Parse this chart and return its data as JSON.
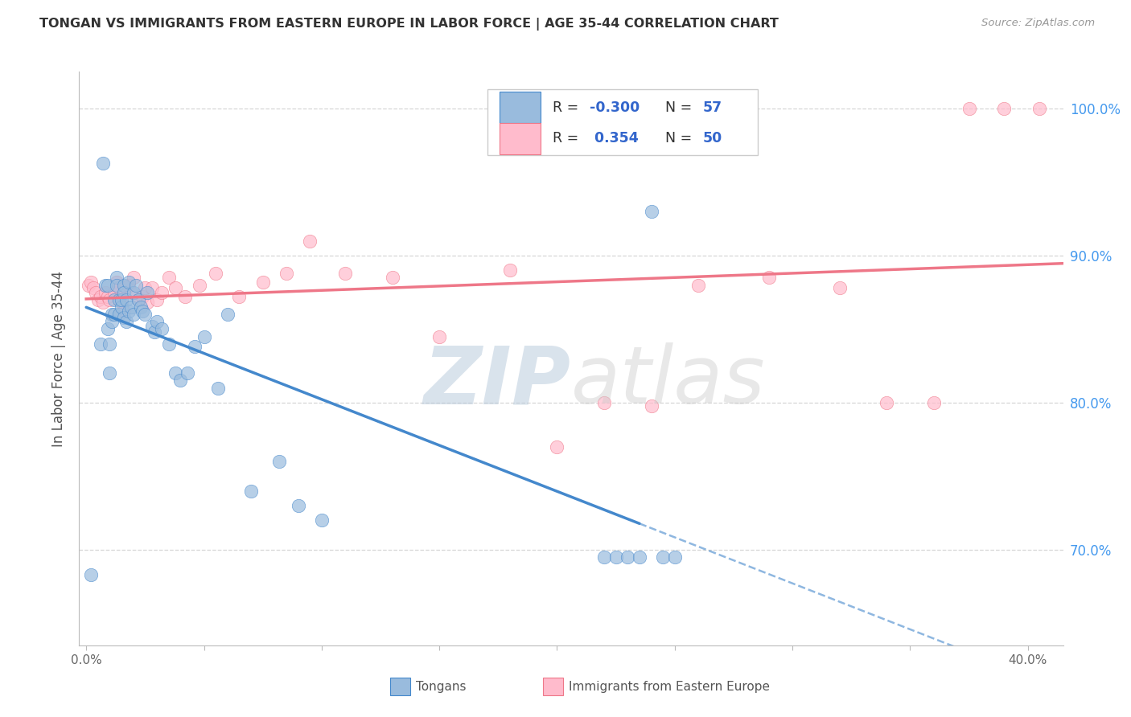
{
  "title": "TONGAN VS IMMIGRANTS FROM EASTERN EUROPE IN LABOR FORCE | AGE 35-44 CORRELATION CHART",
  "source": "Source: ZipAtlas.com",
  "ylabel": "In Labor Force | Age 35-44",
  "x_min": -0.003,
  "x_max": 0.415,
  "y_min": 0.635,
  "y_max": 1.025,
  "x_ticks": [
    0.0,
    0.05,
    0.1,
    0.15,
    0.2,
    0.25,
    0.3,
    0.35,
    0.4
  ],
  "y_ticks": [
    0.7,
    0.8,
    0.9,
    1.0
  ],
  "y_tick_labels": [
    "70.0%",
    "80.0%",
    "90.0%",
    "100.0%"
  ],
  "x_tick_labels": [
    "0.0%",
    "",
    "",
    "",
    "",
    "",
    "",
    "",
    "40.0%"
  ],
  "blue_color": "#99BBDD",
  "pink_color": "#FFBBCC",
  "blue_line_color": "#4488CC",
  "pink_line_color": "#EE7788",
  "blue_r": "-0.300",
  "blue_n": "57",
  "pink_r": "0.354",
  "pink_n": "50",
  "tongans_x": [
    0.002,
    0.006,
    0.007,
    0.008,
    0.009,
    0.009,
    0.01,
    0.01,
    0.011,
    0.011,
    0.012,
    0.012,
    0.013,
    0.013,
    0.014,
    0.014,
    0.015,
    0.015,
    0.016,
    0.016,
    0.016,
    0.017,
    0.017,
    0.018,
    0.018,
    0.019,
    0.02,
    0.02,
    0.021,
    0.022,
    0.023,
    0.024,
    0.025,
    0.026,
    0.028,
    0.029,
    0.03,
    0.032,
    0.035,
    0.038,
    0.04,
    0.043,
    0.046,
    0.05,
    0.056,
    0.06,
    0.07,
    0.082,
    0.09,
    0.1,
    0.22,
    0.225,
    0.23,
    0.235,
    0.24,
    0.245,
    0.25
  ],
  "tongans_y": [
    0.683,
    0.84,
    0.963,
    0.88,
    0.88,
    0.85,
    0.84,
    0.82,
    0.86,
    0.855,
    0.86,
    0.87,
    0.885,
    0.88,
    0.87,
    0.86,
    0.865,
    0.87,
    0.88,
    0.875,
    0.858,
    0.87,
    0.855,
    0.882,
    0.862,
    0.865,
    0.86,
    0.875,
    0.88,
    0.87,
    0.865,
    0.862,
    0.86,
    0.875,
    0.852,
    0.848,
    0.855,
    0.85,
    0.84,
    0.82,
    0.815,
    0.82,
    0.838,
    0.845,
    0.81,
    0.86,
    0.74,
    0.76,
    0.73,
    0.72,
    0.695,
    0.695,
    0.695,
    0.695,
    0.93,
    0.695,
    0.695
  ],
  "eastern_europe_x": [
    0.001,
    0.002,
    0.003,
    0.004,
    0.005,
    0.006,
    0.007,
    0.008,
    0.009,
    0.01,
    0.012,
    0.013,
    0.014,
    0.015,
    0.016,
    0.017,
    0.018,
    0.019,
    0.02,
    0.022,
    0.024,
    0.025,
    0.026,
    0.028,
    0.03,
    0.032,
    0.035,
    0.038,
    0.042,
    0.048,
    0.055,
    0.065,
    0.075,
    0.085,
    0.095,
    0.11,
    0.13,
    0.15,
    0.18,
    0.2,
    0.22,
    0.24,
    0.26,
    0.29,
    0.32,
    0.34,
    0.36,
    0.375,
    0.39,
    0.405
  ],
  "eastern_europe_y": [
    0.88,
    0.882,
    0.878,
    0.875,
    0.87,
    0.872,
    0.868,
    0.875,
    0.872,
    0.87,
    0.875,
    0.882,
    0.878,
    0.868,
    0.862,
    0.878,
    0.88,
    0.875,
    0.885,
    0.87,
    0.872,
    0.878,
    0.868,
    0.878,
    0.87,
    0.875,
    0.885,
    0.878,
    0.872,
    0.88,
    0.888,
    0.872,
    0.882,
    0.888,
    0.91,
    0.888,
    0.885,
    0.845,
    0.89,
    0.77,
    0.8,
    0.798,
    0.88,
    0.885,
    0.878,
    0.8,
    0.8,
    1.0,
    1.0,
    1.0
  ]
}
